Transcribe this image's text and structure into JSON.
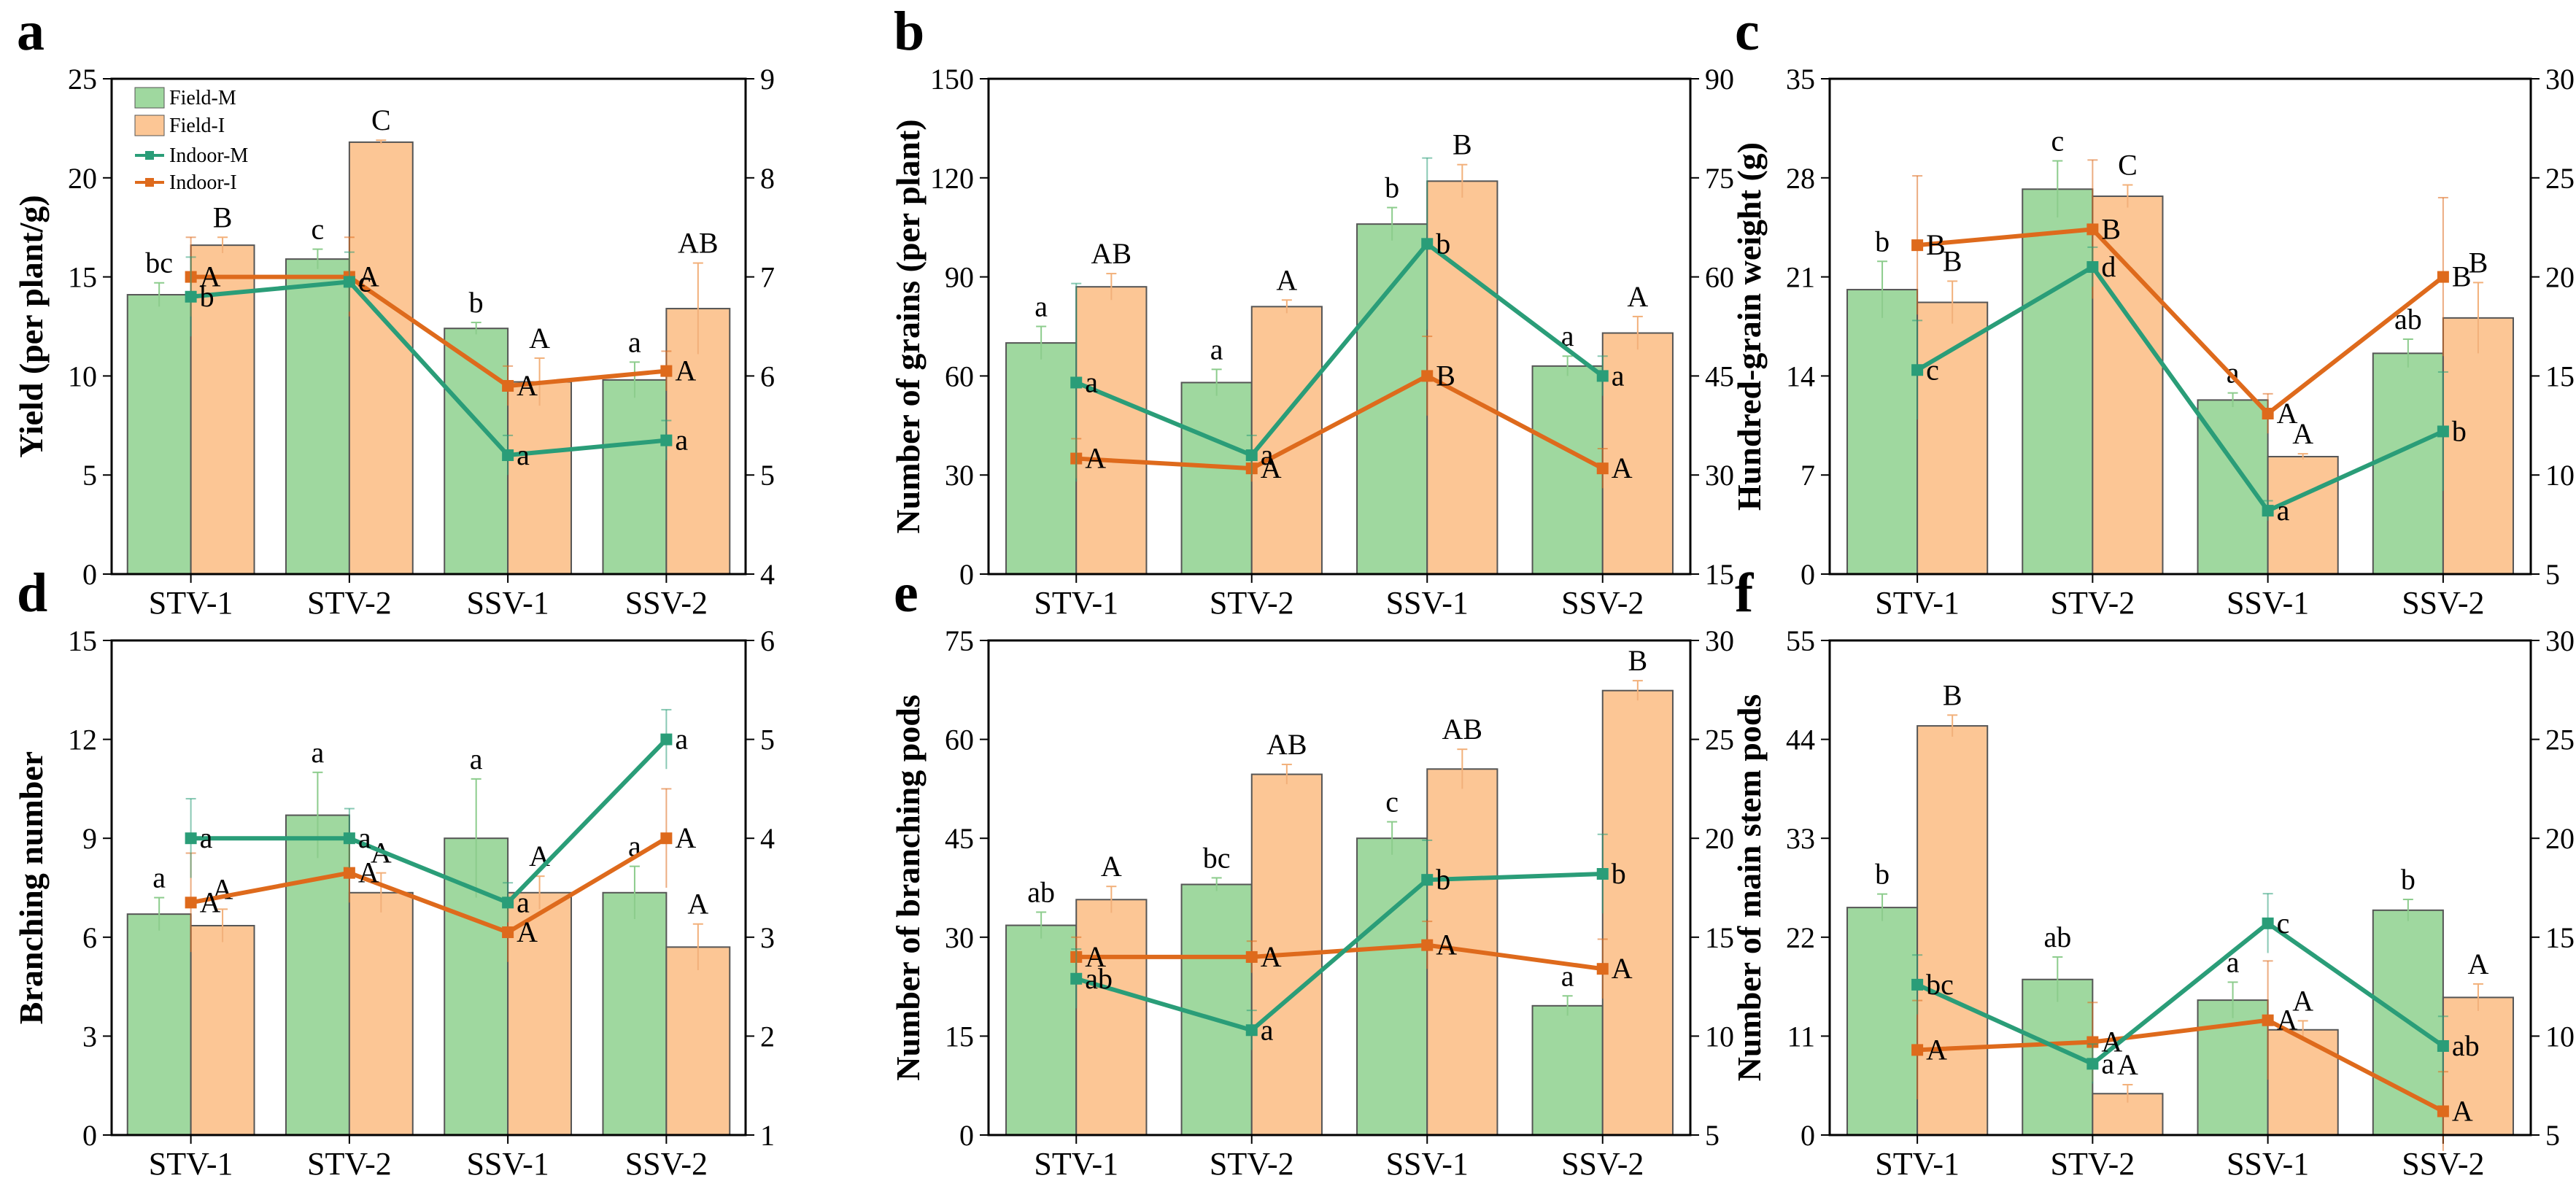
{
  "colors": {
    "field_m": "#9fd89f",
    "field_i": "#fcc695",
    "indoor_m": "#2a9d78",
    "indoor_i": "#de6a1c",
    "err_m": "#8ccc8c",
    "err_i": "#f2b07a"
  },
  "legend": [
    "Field-M",
    "Field-I",
    "Indoor-M",
    "Indoor-I"
  ],
  "chart_data": [
    {
      "panel": "a",
      "type": "bar+line",
      "ylabel": "Yield (per plant/g)",
      "categories": [
        "STV-1",
        "STV-2",
        "SSV-1",
        "SSV-2"
      ],
      "left": {
        "min": 0,
        "max": 25,
        "ticks": [
          0,
          5,
          10,
          15,
          20,
          25
        ]
      },
      "right": {
        "min": 4,
        "max": 9,
        "ticks": [
          4,
          5,
          6,
          7,
          8,
          9
        ]
      },
      "field_m": [
        14.1,
        15.9,
        12.4,
        9.8
      ],
      "field_m_err": [
        0.6,
        0.5,
        0.3,
        0.9
      ],
      "field_i": [
        16.6,
        21.8,
        9.7,
        13.4
      ],
      "field_i_err": [
        0.4,
        0.1,
        1.2,
        2.3
      ],
      "indoor_m": [
        6.8,
        6.95,
        5.2,
        5.35
      ],
      "indoor_m_err": [
        0.4,
        0.3,
        0.2,
        0.2
      ],
      "indoor_i": [
        7.0,
        7.0,
        5.9,
        6.05
      ],
      "indoor_i_err": [
        0.4,
        0.4,
        0.2,
        0.2
      ],
      "labels_field_m": [
        "bc",
        "c",
        "b",
        "a"
      ],
      "labels_field_i": [
        "B",
        "C",
        "A",
        "AB"
      ],
      "labels_indoor_m": [
        "b",
        "c",
        "a",
        "a"
      ],
      "labels_indoor_i": [
        "A",
        "A",
        "A",
        "A"
      ]
    },
    {
      "panel": "b",
      "type": "bar+line",
      "ylabel": "Number of grains (per plant)",
      "categories": [
        "STV-1",
        "STV-2",
        "SSV-1",
        "SSV-2"
      ],
      "left": {
        "min": 0,
        "max": 150,
        "ticks": [
          0,
          30,
          60,
          90,
          120,
          150
        ]
      },
      "right": {
        "min": 15,
        "max": 90,
        "ticks": [
          15,
          30,
          45,
          60,
          75,
          90
        ]
      },
      "field_m": [
        70,
        58,
        106,
        63
      ],
      "field_m_err": [
        5,
        4,
        5,
        3
      ],
      "field_i": [
        87,
        81,
        119,
        73
      ],
      "field_i_err": [
        4,
        2,
        5,
        5
      ],
      "indoor_m": [
        44,
        33,
        65,
        45
      ],
      "indoor_m_err": [
        15,
        3,
        13,
        3
      ],
      "indoor_i": [
        32.5,
        31,
        45,
        31
      ],
      "indoor_i_err": [
        3,
        2,
        6,
        3
      ],
      "labels_field_m": [
        "a",
        "a",
        "b",
        "a"
      ],
      "labels_field_i": [
        "AB",
        "A",
        "B",
        "A"
      ],
      "labels_indoor_m": [
        "a",
        "a",
        "b",
        "a"
      ],
      "labels_indoor_i": [
        "A",
        "A",
        "B",
        "A"
      ]
    },
    {
      "panel": "c",
      "type": "bar+line",
      "ylabel": "Hundred-grain weight (g)",
      "categories": [
        "STV-1",
        "STV-2",
        "SSV-1",
        "SSV-2"
      ],
      "left": {
        "min": 0,
        "max": 35,
        "ticks": [
          0,
          7,
          14,
          21,
          28,
          35
        ]
      },
      "right": {
        "min": 5,
        "max": 30,
        "ticks": [
          5,
          10,
          15,
          20,
          25,
          30
        ]
      },
      "field_m": [
        20.1,
        27.2,
        12.3,
        15.6
      ],
      "field_m_err": [
        2,
        2,
        0.5,
        1
      ],
      "field_i": [
        19.2,
        26.7,
        8.3,
        18.1
      ],
      "field_i_err": [
        1.5,
        0.8,
        0.2,
        2.5
      ],
      "indoor_m": [
        15.3,
        20.5,
        8.2,
        12.2
      ],
      "indoor_m_err": [
        2.5,
        1,
        0.5,
        3
      ],
      "indoor_i": [
        21.6,
        22.4,
        13.1,
        20.0
      ],
      "indoor_i_err": [
        3.5,
        3.5,
        1,
        4
      ],
      "labels_field_m": [
        "b",
        "c",
        "a",
        "ab"
      ],
      "labels_field_i": [
        "B",
        "C",
        "A",
        "B"
      ],
      "labels_indoor_m": [
        "c",
        "d",
        "a",
        "b"
      ],
      "labels_indoor_i": [
        "B",
        "B",
        "A",
        "B"
      ]
    },
    {
      "panel": "d",
      "type": "bar+line",
      "ylabel": "Branching number",
      "categories": [
        "STV-1",
        "STV-2",
        "SSV-1",
        "SSV-2"
      ],
      "left": {
        "min": 0,
        "max": 15,
        "ticks": [
          0,
          3,
          6,
          9,
          12,
          15
        ]
      },
      "right": {
        "min": 1,
        "max": 6,
        "ticks": [
          1,
          2,
          3,
          4,
          5,
          6
        ]
      },
      "field_m": [
        6.7,
        9.7,
        9.0,
        7.35
      ],
      "field_m_err": [
        0.5,
        1.3,
        1.8,
        0.8
      ],
      "field_i": [
        6.35,
        7.35,
        7.35,
        5.7
      ],
      "field_i_err": [
        0.5,
        0.6,
        0.5,
        0.7
      ],
      "indoor_m": [
        4.0,
        4.0,
        3.35,
        5.0
      ],
      "indoor_m_err": [
        0.4,
        0.3,
        0.2,
        0.3
      ],
      "indoor_i": [
        3.35,
        3.65,
        3.05,
        4.0
      ],
      "indoor_i_err": [
        0.5,
        0.3,
        0.3,
        0.5
      ],
      "labels_field_m": [
        "a",
        "a",
        "a",
        "a"
      ],
      "labels_field_i": [
        "A",
        "A",
        "A",
        "A"
      ],
      "labels_indoor_m": [
        "a",
        "a",
        "a",
        "a"
      ],
      "labels_indoor_i": [
        "A",
        "A",
        "A",
        "A"
      ]
    },
    {
      "panel": "e",
      "type": "bar+line",
      "ylabel": "Number of branching pods",
      "categories": [
        "STV-1",
        "STV-2",
        "SSV-1",
        "SSV-2"
      ],
      "left": {
        "min": 0,
        "max": 75,
        "ticks": [
          0,
          15,
          30,
          45,
          60,
          75
        ]
      },
      "right": {
        "min": 5,
        "max": 30,
        "ticks": [
          5,
          10,
          15,
          20,
          25,
          30
        ]
      },
      "field_m": [
        31.8,
        38.0,
        45.0,
        19.6
      ],
      "field_m_err": [
        2,
        1,
        2.5,
        1.5
      ],
      "field_i": [
        35.7,
        54.7,
        55.5,
        67.4
      ],
      "field_i_err": [
        2,
        1.5,
        3,
        1.5
      ],
      "indoor_m": [
        12.9,
        10.3,
        17.9,
        18.2
      ],
      "indoor_m_err": [
        1.5,
        1,
        2,
        2
      ],
      "indoor_i": [
        14.0,
        14.0,
        14.6,
        13.4
      ],
      "indoor_i_err": [
        1,
        0.8,
        1.2,
        1.5
      ],
      "labels_field_m": [
        "ab",
        "bc",
        "c",
        "a"
      ],
      "labels_field_i": [
        "A",
        "AB",
        "AB",
        "B"
      ],
      "labels_indoor_m": [
        "ab",
        "a",
        "b",
        "b"
      ],
      "labels_indoor_i": [
        "A",
        "A",
        "A",
        "A"
      ]
    },
    {
      "panel": "f",
      "type": "bar+line",
      "ylabel": "Number of main stem pods",
      "categories": [
        "STV-1",
        "STV-2",
        "SSV-1",
        "SSV-2"
      ],
      "left": {
        "min": 0,
        "max": 55,
        "ticks": [
          0,
          11,
          22,
          33,
          44,
          55
        ]
      },
      "right": {
        "min": 5,
        "max": 30,
        "ticks": [
          5,
          10,
          15,
          20,
          25,
          30
        ]
      },
      "field_m": [
        25.3,
        17.3,
        15.0,
        25.0
      ],
      "field_m_err": [
        1.5,
        2.5,
        2,
        1.2
      ],
      "field_i": [
        45.5,
        4.6,
        11.7,
        15.3
      ],
      "field_i_err": [
        1.2,
        1,
        1,
        1.5
      ],
      "indoor_m": [
        12.6,
        8.6,
        15.7,
        9.5
      ],
      "indoor_m_err": [
        1.5,
        1,
        1.5,
        1.5
      ],
      "indoor_i": [
        9.3,
        9.7,
        10.8,
        6.2
      ],
      "indoor_i_err": [
        2.5,
        2,
        3,
        2
      ],
      "labels_field_m": [
        "b",
        "ab",
        "a",
        "b"
      ],
      "labels_field_i": [
        "B",
        "A",
        "A",
        "A"
      ],
      "labels_indoor_m": [
        "bc",
        "a",
        "c",
        "ab"
      ],
      "labels_indoor_i": [
        "A",
        "A",
        "A",
        "A"
      ]
    }
  ]
}
